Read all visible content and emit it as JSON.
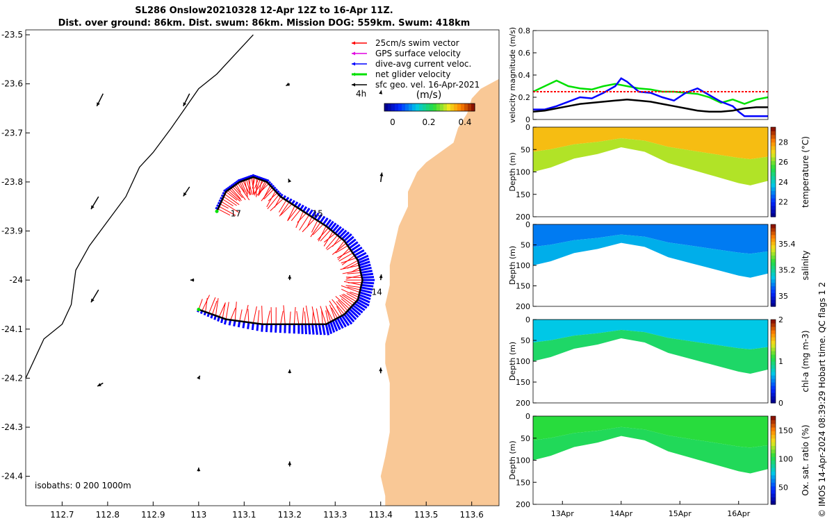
{
  "header": {
    "line1": "SL286 Onslow20210328 12-Apr 12Z to 16-Apr 11Z.",
    "line2": "Dist. over ground: 86km. Dist. swum: 86km. Mission DOG: 559km. Swum: 418km"
  },
  "colors": {
    "land": "#f9c896",
    "swim": "#ff0000",
    "gps": "#e000e0",
    "current": "#0000ff",
    "net": "#00e000",
    "geo": "#000000"
  },
  "chart_data": [
    {
      "type": "map",
      "title": "SL286 Onslow20210328 12-Apr 12Z to 16-Apr 11Z.",
      "xticks": [
        "112.7",
        "112.8",
        "112.9",
        "113",
        "113.1",
        "113.2",
        "113.3",
        "113.4",
        "113.5",
        "113.6"
      ],
      "xtick_values": [
        112.7,
        112.8,
        112.9,
        113.0,
        113.1,
        113.2,
        113.3,
        113.4,
        113.5,
        113.6
      ],
      "yticks": [
        "-23.5",
        "-23.6",
        "-23.7",
        "-23.8",
        "-23.9",
        "-24",
        "-24.1",
        "-24.2",
        "-24.3",
        "-24.4"
      ],
      "ytick_values": [
        -23.5,
        -23.6,
        -23.7,
        -23.8,
        -23.9,
        -24.0,
        -24.1,
        -24.2,
        -24.3,
        -24.4
      ],
      "xlim": [
        112.62,
        113.66
      ],
      "ylim": [
        -24.46,
        -23.49
      ],
      "legend": [
        {
          "label": "25cm/s swim vector",
          "color": "#ff0000"
        },
        {
          "label": "GPS surface velocity",
          "color": "#e000e0"
        },
        {
          "label": "dive-avg current veloc.",
          "color": "#0000ff"
        },
        {
          "label": "net glider velocity",
          "color": "#00e000"
        },
        {
          "label": "sfc geo. vel. 16-Apr-2021",
          "color": "#000000"
        }
      ],
      "legend_extra": "4h",
      "colorbar": {
        "label": "(m/s)",
        "ticks": [
          "0",
          "0.2",
          "0.4"
        ],
        "tick_values": [
          0,
          0.2,
          0.4
        ],
        "range": [
          0,
          0.5
        ]
      },
      "isobath_label": "isobaths: 0   200  1000m",
      "day_labels": [
        {
          "text": "14",
          "lon": 113.38,
          "lat": -24.03
        },
        {
          "text": "15",
          "lon": 113.25,
          "lat": -23.87
        },
        {
          "text": "17",
          "lon": 113.07,
          "lat": -23.87
        }
      ],
      "track": [
        [
          113.0,
          -24.06
        ],
        [
          113.06,
          -24.08
        ],
        [
          113.14,
          -24.09
        ],
        [
          113.22,
          -24.09
        ],
        [
          113.28,
          -24.09
        ],
        [
          113.32,
          -24.07
        ],
        [
          113.35,
          -24.04
        ],
        [
          113.36,
          -24.0
        ],
        [
          113.35,
          -23.96
        ],
        [
          113.32,
          -23.92
        ],
        [
          113.28,
          -23.89
        ],
        [
          113.23,
          -23.86
        ],
        [
          113.18,
          -23.83
        ],
        [
          113.15,
          -23.8
        ],
        [
          113.12,
          -23.79
        ],
        [
          113.09,
          -23.8
        ],
        [
          113.06,
          -23.82
        ],
        [
          113.04,
          -23.86
        ]
      ],
      "isobath_1000": [
        [
          112.62,
          -24.2
        ],
        [
          112.66,
          -24.12
        ],
        [
          112.7,
          -24.09
        ],
        [
          112.72,
          -24.05
        ],
        [
          112.73,
          -23.98
        ],
        [
          112.76,
          -23.93
        ],
        [
          112.8,
          -23.88
        ],
        [
          112.84,
          -23.83
        ],
        [
          112.87,
          -23.77
        ],
        [
          112.9,
          -23.74
        ],
        [
          112.94,
          -23.69
        ],
        [
          112.97,
          -23.65
        ],
        [
          113.0,
          -23.61
        ],
        [
          113.04,
          -23.58
        ],
        [
          113.08,
          -23.54
        ],
        [
          113.12,
          -23.5
        ]
      ],
      "geo_vectors": [
        {
          "lon": 112.79,
          "lat": -23.62,
          "u": 0.1,
          "v": 0.2
        },
        {
          "lon": 112.98,
          "lat": -23.62,
          "u": 0.1,
          "v": 0.2
        },
        {
          "lon": 113.2,
          "lat": -23.6,
          "u": 0.06,
          "v": 0.03
        },
        {
          "lon": 113.4,
          "lat": -23.62,
          "u": -0.01,
          "v": -0.05
        },
        {
          "lon": 112.78,
          "lat": -23.83,
          "u": 0.12,
          "v": 0.2
        },
        {
          "lon": 112.98,
          "lat": -23.81,
          "u": 0.1,
          "v": 0.15
        },
        {
          "lon": 113.2,
          "lat": -23.8,
          "u": 0.02,
          "v": -0.05
        },
        {
          "lon": 113.4,
          "lat": -23.8,
          "u": -0.02,
          "v": -0.15
        },
        {
          "lon": 112.78,
          "lat": -24.02,
          "u": 0.12,
          "v": 0.2
        },
        {
          "lon": 112.99,
          "lat": -24.0,
          "u": 0.06,
          "v": 0.0
        },
        {
          "lon": 113.2,
          "lat": -24.0,
          "u": 0.0,
          "v": -0.08
        },
        {
          "lon": 113.4,
          "lat": -24.0,
          "u": -0.01,
          "v": -0.09
        },
        {
          "lon": 112.79,
          "lat": -24.21,
          "u": 0.09,
          "v": 0.05
        },
        {
          "lon": 113.0,
          "lat": -24.2,
          "u": -0.02,
          "v": -0.04
        },
        {
          "lon": 113.2,
          "lat": -24.19,
          "u": 0.0,
          "v": -0.06
        },
        {
          "lon": 113.4,
          "lat": -24.19,
          "u": 0.0,
          "v": -0.09
        },
        {
          "lon": 113.0,
          "lat": -24.39,
          "u": 0.0,
          "v": -0.06
        },
        {
          "lon": 113.2,
          "lat": -24.38,
          "u": 0.0,
          "v": -0.08
        }
      ]
    },
    {
      "type": "line",
      "ylabel": "velocity magnitude (m/s)",
      "ylim": [
        0,
        0.8
      ],
      "yticks": [
        "0",
        "0.2",
        "0.4",
        "0.6",
        "0.8"
      ],
      "ytick_values": [
        0,
        0.2,
        0.4,
        0.6,
        0.8
      ],
      "xlim": [
        12.5,
        16.5
      ],
      "series": [
        {
          "name": "net glider velocity",
          "color": "#00e000",
          "x": [
            12.5,
            12.7,
            12.9,
            13.1,
            13.3,
            13.5,
            13.7,
            13.9,
            14.1,
            14.3,
            14.5,
            14.7,
            14.9,
            15.1,
            15.3,
            15.5,
            15.7,
            15.9,
            16.1,
            16.3,
            16.5
          ],
          "y": [
            0.25,
            0.3,
            0.35,
            0.3,
            0.28,
            0.27,
            0.3,
            0.32,
            0.3,
            0.28,
            0.27,
            0.25,
            0.25,
            0.24,
            0.23,
            0.2,
            0.15,
            0.18,
            0.14,
            0.18,
            0.2
          ]
        },
        {
          "name": "dive-avg current veloc.",
          "color": "#0000ff",
          "x": [
            12.5,
            12.7,
            12.9,
            13.1,
            13.3,
            13.5,
            13.7,
            13.9,
            14.0,
            14.1,
            14.3,
            14.5,
            14.7,
            14.9,
            15.1,
            15.3,
            15.5,
            15.7,
            15.9,
            16.0,
            16.1,
            16.3,
            16.5
          ],
          "y": [
            0.09,
            0.09,
            0.12,
            0.16,
            0.2,
            0.19,
            0.24,
            0.3,
            0.37,
            0.34,
            0.25,
            0.24,
            0.2,
            0.17,
            0.24,
            0.28,
            0.22,
            0.16,
            0.12,
            0.07,
            0.03,
            0.03,
            0.03
          ]
        },
        {
          "name": "sfc geo. vel.",
          "color": "#000000",
          "x": [
            12.5,
            12.7,
            12.9,
            13.1,
            13.3,
            13.5,
            13.7,
            13.9,
            14.1,
            14.3,
            14.5,
            14.7,
            14.9,
            15.1,
            15.3,
            15.5,
            15.7,
            15.9,
            16.1,
            16.3,
            16.5
          ],
          "y": [
            0.07,
            0.08,
            0.1,
            0.12,
            0.14,
            0.15,
            0.16,
            0.17,
            0.18,
            0.17,
            0.16,
            0.14,
            0.12,
            0.1,
            0.08,
            0.07,
            0.07,
            0.08,
            0.1,
            0.11,
            0.11
          ]
        },
        {
          "name": "25cm/s swim vector",
          "color": "#ff0000",
          "x": [
            12.5,
            16.5
          ],
          "y": [
            0.25,
            0.25
          ]
        }
      ]
    },
    {
      "type": "heatmap",
      "ylabel": "Depth (m)",
      "variable": "temperature (°C)",
      "ylim": [
        200,
        0
      ],
      "yticks": [
        "0",
        "50",
        "100",
        "150",
        "200"
      ],
      "ytick_values": [
        0,
        50,
        100,
        150,
        200
      ],
      "cticks": [
        "22",
        "24",
        "26",
        "28"
      ],
      "ctick_values": [
        22,
        24,
        26,
        28
      ],
      "clim": [
        20.5,
        29.5
      ],
      "surface_value": 27.5,
      "deep_value": 26.5,
      "bottom_depth": [
        [
          12.5,
          100
        ],
        [
          12.8,
          90
        ],
        [
          13.2,
          70
        ],
        [
          13.6,
          60
        ],
        [
          14.0,
          45
        ],
        [
          14.4,
          55
        ],
        [
          14.8,
          80
        ],
        [
          15.2,
          95
        ],
        [
          15.6,
          110
        ],
        [
          16.0,
          125
        ],
        [
          16.2,
          130
        ],
        [
          16.5,
          120
        ]
      ]
    },
    {
      "type": "heatmap",
      "ylabel": "Depth (m)",
      "variable": "salinity",
      "ylim": [
        200,
        0
      ],
      "yticks": [
        "0",
        "50",
        "100",
        "150",
        "200"
      ],
      "ytick_values": [
        0,
        50,
        100,
        150,
        200
      ],
      "cticks": [
        "35",
        "35.2",
        "35.4"
      ],
      "ctick_values": [
        35.0,
        35.2,
        35.4
      ],
      "clim": [
        34.92,
        35.55
      ],
      "surface_value": 35.08,
      "deep_value": 35.12,
      "bottom_depth": [
        [
          12.5,
          100
        ],
        [
          12.8,
          90
        ],
        [
          13.2,
          70
        ],
        [
          13.6,
          60
        ],
        [
          14.0,
          45
        ],
        [
          14.4,
          55
        ],
        [
          14.8,
          80
        ],
        [
          15.2,
          95
        ],
        [
          15.6,
          110
        ],
        [
          16.0,
          125
        ],
        [
          16.2,
          130
        ],
        [
          16.5,
          120
        ]
      ]
    },
    {
      "type": "heatmap",
      "ylabel": "Depth (m)",
      "variable": "chl-a (mg m-3)",
      "ylim": [
        200,
        0
      ],
      "yticks": [
        "0",
        "50",
        "100",
        "150",
        "200"
      ],
      "ytick_values": [
        0,
        50,
        100,
        150,
        200
      ],
      "cticks": [
        "0",
        "1",
        "2"
      ],
      "ctick_values": [
        0,
        1,
        2
      ],
      "clim": [
        0,
        2
      ],
      "surface_value": 0.7,
      "deep_value": 1.0,
      "bottom_depth": [
        [
          12.5,
          100
        ],
        [
          12.8,
          90
        ],
        [
          13.2,
          70
        ],
        [
          13.6,
          60
        ],
        [
          14.0,
          45
        ],
        [
          14.4,
          55
        ],
        [
          14.8,
          80
        ],
        [
          15.2,
          95
        ],
        [
          15.6,
          110
        ],
        [
          16.0,
          125
        ],
        [
          16.2,
          130
        ],
        [
          16.5,
          120
        ]
      ]
    },
    {
      "type": "heatmap",
      "ylabel": "Depth (m)",
      "variable": "Ox. sat. ratio (%)",
      "ylim": [
        200,
        0
      ],
      "yticks": [
        "0",
        "50",
        "100",
        "150",
        "200"
      ],
      "ytick_values": [
        0,
        50,
        100,
        150,
        200
      ],
      "cticks": [
        "50",
        "100",
        "150"
      ],
      "ctick_values": [
        50,
        100,
        150
      ],
      "clim": [
        20,
        175
      ],
      "surface_value": 105,
      "deep_value": 100,
      "bottom_depth": [
        [
          12.5,
          100
        ],
        [
          12.8,
          90
        ],
        [
          13.2,
          70
        ],
        [
          13.6,
          60
        ],
        [
          14.0,
          45
        ],
        [
          14.4,
          55
        ],
        [
          14.8,
          80
        ],
        [
          15.2,
          95
        ],
        [
          15.6,
          110
        ],
        [
          16.0,
          125
        ],
        [
          16.2,
          130
        ],
        [
          16.5,
          120
        ]
      ],
      "xticks": [
        "13Apr",
        "14Apr",
        "15Apr",
        "16Apr"
      ],
      "xtick_values": [
        13,
        14,
        15,
        16
      ]
    }
  ],
  "side_note": "© IMOS 14-Apr-2024 08:39:29 Hobart time. QC flags 1  2"
}
